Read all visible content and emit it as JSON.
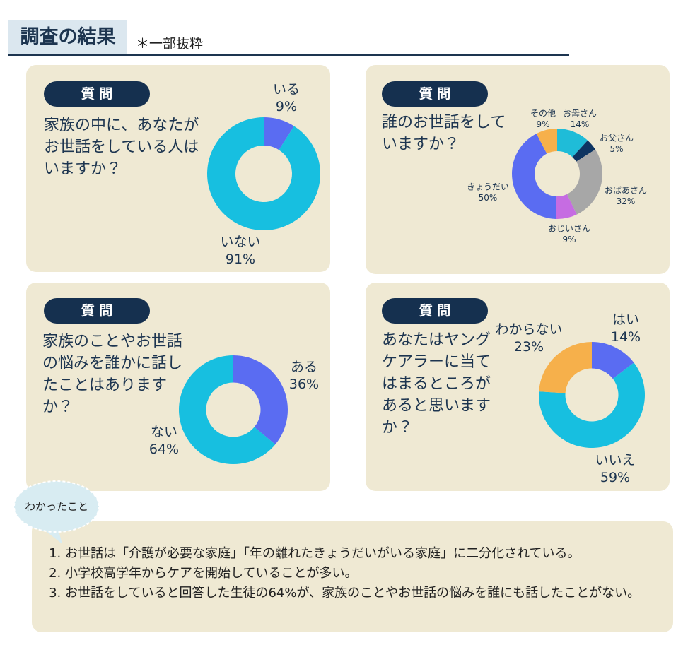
{
  "header": {
    "title": "調査の結果",
    "note": "＊一部抜粋"
  },
  "chart_data": [
    {
      "type": "pie",
      "donut": true,
      "badge": "質 問",
      "question": "家族の中に、あなたがお世話をしている人はいますか？",
      "categories": [
        "いる",
        "いない"
      ],
      "values": [
        9,
        91
      ],
      "value_labels": [
        "9%",
        "91%"
      ],
      "colors": [
        "#5a6cf2",
        "#17bfe0"
      ]
    },
    {
      "type": "pie",
      "donut": true,
      "badge": "質 問",
      "question": "誰のお世話をしていますか？",
      "categories": [
        "お母さん",
        "お父さん",
        "おばあさん",
        "おじいさん",
        "きょうだい",
        "その他"
      ],
      "values": [
        14,
        5,
        32,
        9,
        50,
        9
      ],
      "value_labels": [
        "14%",
        "5%",
        "32%",
        "9%",
        "50%",
        "9%"
      ],
      "colors": [
        "#1fbcd8",
        "#0e3461",
        "#a7a7a7",
        "#c66ce2",
        "#5a6cf2",
        "#f6b04b"
      ]
    },
    {
      "type": "pie",
      "donut": true,
      "badge": "質 問",
      "question": "家族のことやお世話の悩みを誰かに話したことはありますか？",
      "categories": [
        "ある",
        "ない"
      ],
      "values": [
        36,
        64
      ],
      "value_labels": [
        "36%",
        "64%"
      ],
      "colors": [
        "#5a6cf2",
        "#17bfe0"
      ]
    },
    {
      "type": "pie",
      "donut": true,
      "badge": "質 問",
      "question": "あなたはヤングケアラーに当てはまるところがあると思いますか？",
      "categories": [
        "はい",
        "いいえ",
        "わからない"
      ],
      "values": [
        14,
        59,
        23
      ],
      "value_labels": [
        "14%",
        "59%",
        "23%"
      ],
      "colors": [
        "#5a6cf2",
        "#17bfe0",
        "#f6b04b"
      ]
    }
  ],
  "findings": {
    "label": "わかったこと",
    "items": [
      "お世話は「介護が必要な家庭」「年の離れたきょうだいがいる家庭」に二分化されている。",
      "小学校高学年からケアを開始していることが多い。",
      "お世話をしていると回答した生徒の64%が、家族のことやお世話の悩みを誰にも話したことがない。"
    ]
  }
}
